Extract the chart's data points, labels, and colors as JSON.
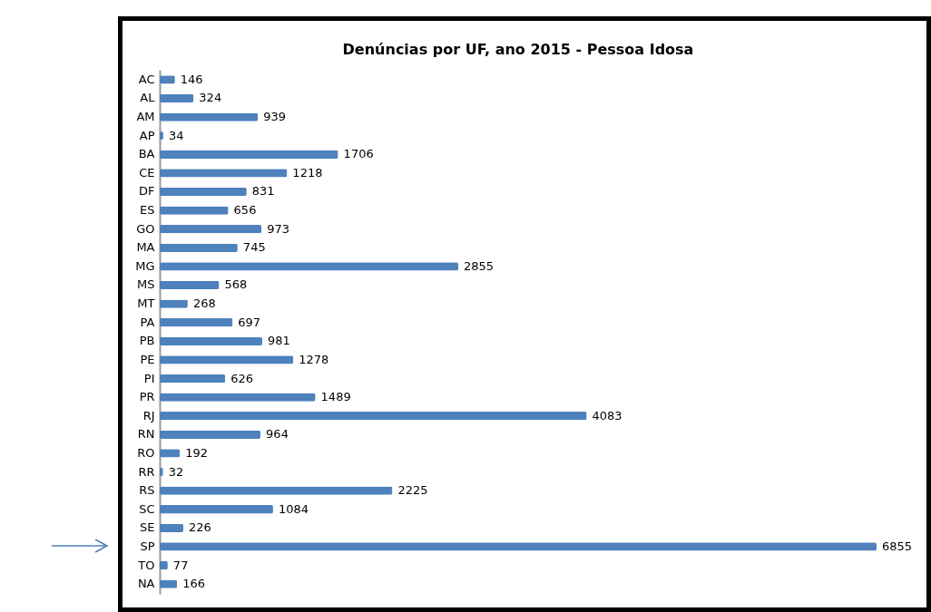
{
  "chart_data": {
    "type": "bar",
    "orientation": "horizontal",
    "title": "Denúncias por UF, ano 2015 - Pessoa Idosa",
    "categories": [
      "AC",
      "AL",
      "AM",
      "AP",
      "BA",
      "CE",
      "DF",
      "ES",
      "GO",
      "MA",
      "MG",
      "MS",
      "MT",
      "PA",
      "PB",
      "PE",
      "PI",
      "PR",
      "RJ",
      "RN",
      "RO",
      "RR",
      "RS",
      "SC",
      "SE",
      "SP",
      "TO",
      "NA"
    ],
    "values": [
      146,
      324,
      939,
      34,
      1706,
      1218,
      831,
      656,
      973,
      745,
      2855,
      568,
      268,
      697,
      981,
      1278,
      626,
      1489,
      4083,
      964,
      192,
      32,
      2225,
      1084,
      226,
      6855,
      77,
      166
    ],
    "color": "#4f81bd",
    "data_labels": true
  }
}
